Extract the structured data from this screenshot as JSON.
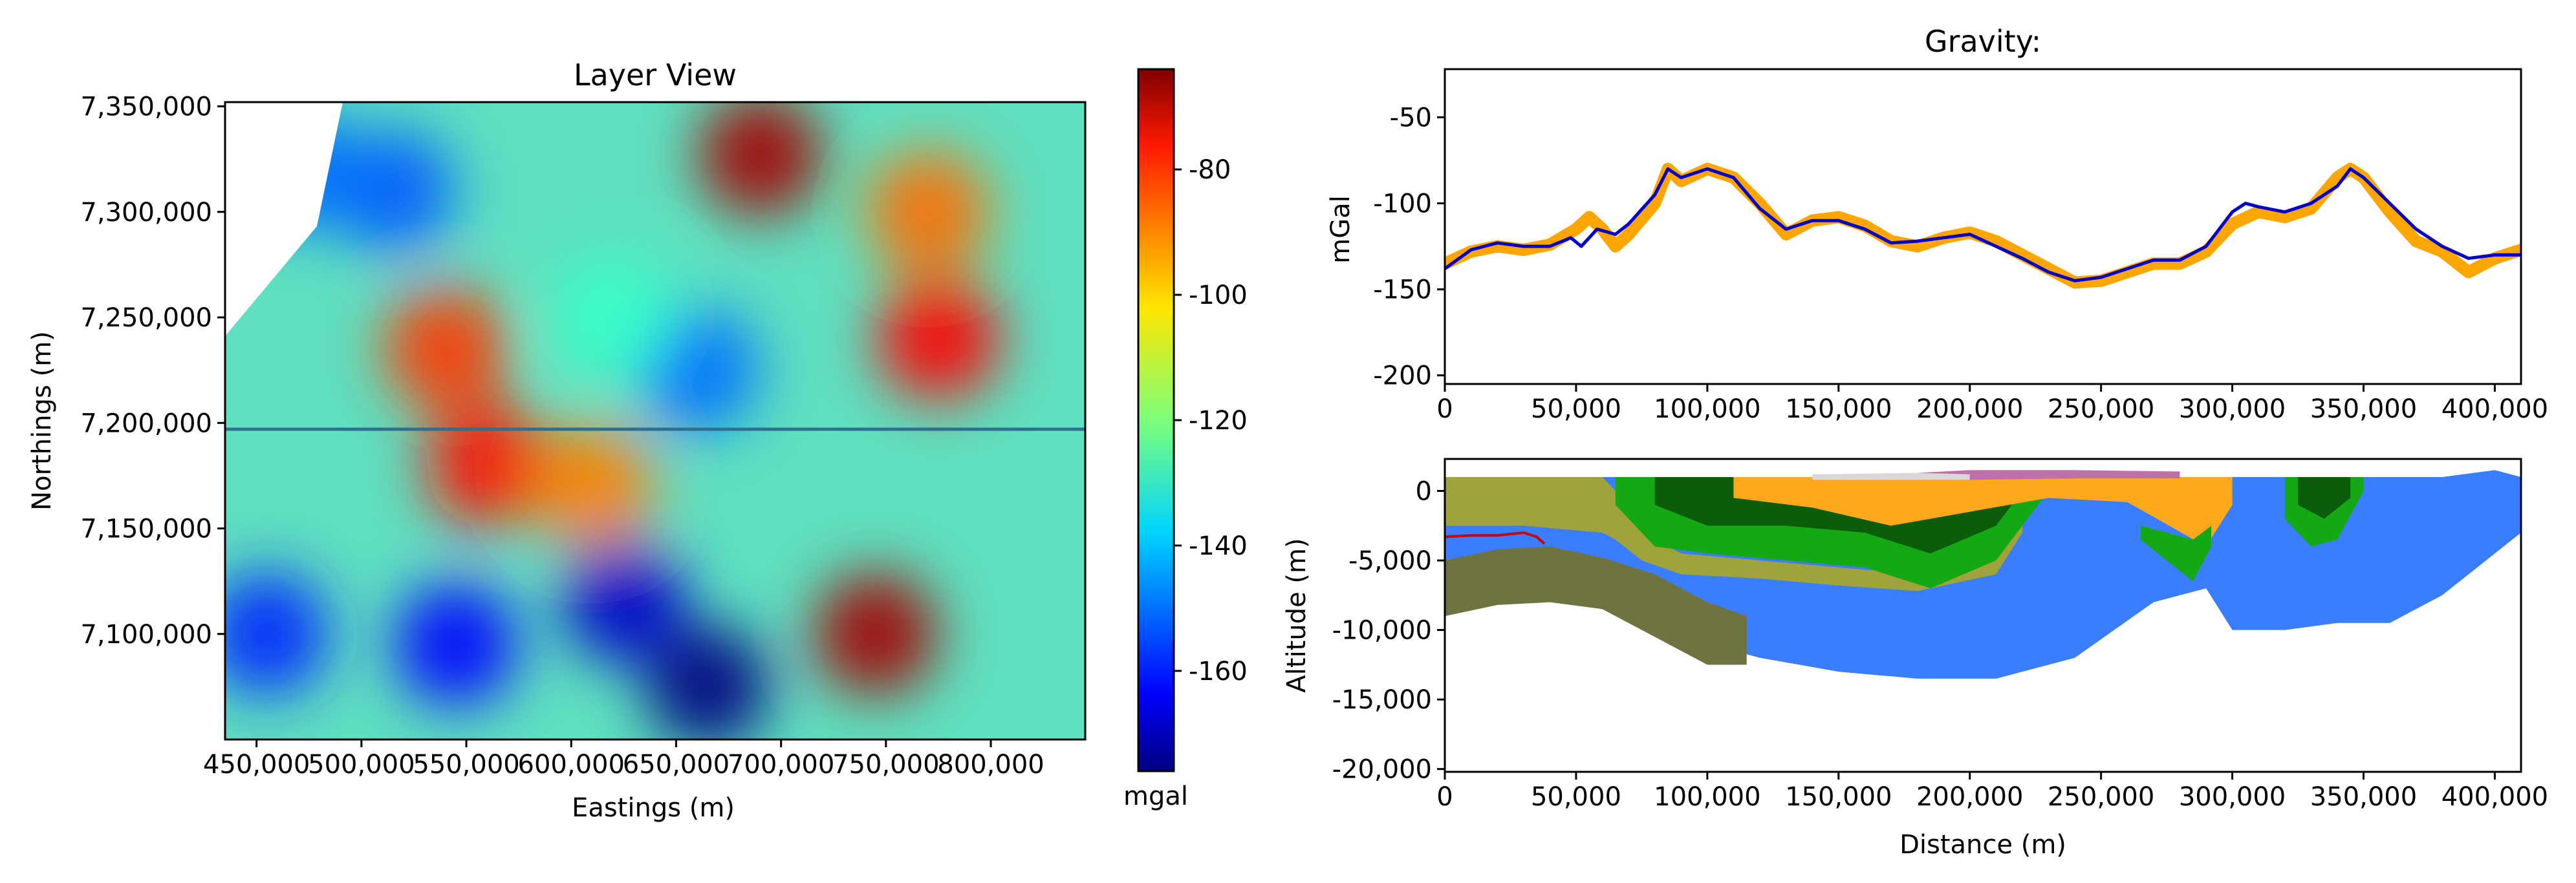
{
  "colors": {
    "observed_line": "#FFA500",
    "calculated_line": "#0000CC",
    "profile_line": "#2f6f8f",
    "layer_blue": "#3A7EFF",
    "layer_orange": "#FFA81C",
    "layer_olive": "#9FA33A",
    "layer_dark_olive": "#6E7340",
    "layer_green": "#14A814",
    "layer_dark_green": "#0B5C0B",
    "layer_pink": "#C070A8",
    "layer_gray": "#D8D8D8",
    "layer_red": "#CC0000"
  },
  "chart_data": [
    {
      "type": "heatmap",
      "title": "Layer View",
      "xlabel": "Eastings (m)",
      "ylabel": "Northings (m)",
      "xlim": [
        435000,
        845000
      ],
      "ylim": [
        7050000,
        7352000
      ],
      "x_ticks": [
        450000,
        500000,
        550000,
        600000,
        650000,
        700000,
        750000,
        800000
      ],
      "x_tick_labels": [
        "450,000",
        "500,000",
        "550,000",
        "600,000",
        "650,000",
        "700,000",
        "750,000",
        "800,000"
      ],
      "y_ticks": [
        7100000,
        7150000,
        7200000,
        7250000,
        7300000,
        7350000
      ],
      "y_tick_labels": [
        "7,100,000",
        "7,150,000",
        "7,200,000",
        "7,250,000",
        "7,300,000",
        "7,350,000"
      ],
      "colormap": "jet",
      "colorbar": {
        "label": "mgal",
        "range": [
          -176,
          -64
        ],
        "ticks": [
          -80,
          -100,
          -120,
          -140,
          -160
        ],
        "tick_labels": [
          "-80",
          "-100",
          "-120",
          "-140",
          "-160"
        ]
      },
      "profile_line_northing": 7197000,
      "anomalies": [
        {
          "e": 690000,
          "n": 7327000,
          "value": -68
        },
        {
          "e": 775000,
          "n": 7240000,
          "value": -78
        },
        {
          "e": 745000,
          "n": 7100000,
          "value": -68
        },
        {
          "e": 560000,
          "n": 7180000,
          "value": -80
        },
        {
          "e": 540000,
          "n": 7235000,
          "value": -84
        },
        {
          "e": 610000,
          "n": 7170000,
          "value": -92
        },
        {
          "e": 770000,
          "n": 7300000,
          "value": -90
        },
        {
          "e": 515000,
          "n": 7310000,
          "value": -152
        },
        {
          "e": 625000,
          "n": 7115000,
          "value": -168
        },
        {
          "e": 665000,
          "n": 7075000,
          "value": -176
        },
        {
          "e": 545000,
          "n": 7095000,
          "value": -162
        },
        {
          "e": 660000,
          "n": 7225000,
          "value": -150
        },
        {
          "e": 455000,
          "n": 7100000,
          "value": -158
        },
        {
          "e": 470000,
          "n": 7320000,
          "value": -150
        },
        {
          "e": 620000,
          "n": 7250000,
          "value": -128
        }
      ]
    },
    {
      "type": "line",
      "title": "Gravity:",
      "xlabel": "",
      "ylabel": "mGal",
      "xlim": [
        0,
        410000
      ],
      "ylim": [
        -205,
        -22
      ],
      "x_ticks": [
        0,
        50000,
        100000,
        150000,
        200000,
        250000,
        300000,
        350000,
        400000
      ],
      "x_tick_labels": [
        "0",
        "50,000",
        "100,000",
        "150,000",
        "200,000",
        "250,000",
        "300,000",
        "350,000",
        "400,000"
      ],
      "y_ticks": [
        -50,
        -100,
        -150,
        -200
      ],
      "y_tick_labels": [
        "-50",
        "-100",
        "-150",
        "-200"
      ],
      "series": [
        {
          "x": [
            0,
            10000,
            20000,
            30000,
            40000,
            50000,
            55000,
            60000,
            65000,
            70000,
            80000,
            85000,
            90000,
            100000,
            110000,
            120000,
            130000,
            140000,
            150000,
            160000,
            170000,
            180000,
            190000,
            200000,
            210000,
            220000,
            230000,
            240000,
            250000,
            260000,
            270000,
            280000,
            290000,
            300000,
            310000,
            320000,
            330000,
            340000,
            345000,
            350000,
            360000,
            370000,
            380000,
            390000,
            400000,
            410000
          ],
          "y": [
            -135,
            -128,
            -125,
            -127,
            -124,
            -115,
            -108,
            -115,
            -125,
            -118,
            -100,
            -80,
            -87,
            -80,
            -85,
            -100,
            -118,
            -110,
            -108,
            -113,
            -122,
            -125,
            -120,
            -117,
            -122,
            -130,
            -138,
            -146,
            -145,
            -140,
            -135,
            -135,
            -128,
            -112,
            -105,
            -108,
            -103,
            -85,
            -80,
            -85,
            -105,
            -122,
            -128,
            -140,
            -132,
            -127
          ]
        },
        {
          "x": [
            0,
            10000,
            20000,
            30000,
            40000,
            48000,
            52000,
            58000,
            65000,
            70000,
            80000,
            85000,
            90000,
            100000,
            110000,
            120000,
            130000,
            140000,
            150000,
            160000,
            170000,
            180000,
            190000,
            200000,
            210000,
            220000,
            230000,
            240000,
            250000,
            260000,
            270000,
            280000,
            290000,
            300000,
            305000,
            310000,
            320000,
            330000,
            340000,
            345000,
            350000,
            360000,
            370000,
            380000,
            390000,
            400000,
            410000
          ],
          "y": [
            -138,
            -127,
            -123,
            -125,
            -125,
            -120,
            -125,
            -115,
            -118,
            -112,
            -95,
            -80,
            -85,
            -80,
            -85,
            -103,
            -115,
            -110,
            -110,
            -115,
            -123,
            -122,
            -120,
            -118,
            -125,
            -132,
            -140,
            -145,
            -143,
            -138,
            -133,
            -133,
            -125,
            -105,
            -100,
            -102,
            -105,
            -100,
            -90,
            -80,
            -85,
            -100,
            -115,
            -125,
            -132,
            -130,
            -130
          ]
        }
      ]
    },
    {
      "type": "area",
      "title": "",
      "xlabel": "Distance (m)",
      "ylabel": "Altitude (m)",
      "xlim": [
        0,
        410000
      ],
      "ylim": [
        -20200,
        2300
      ],
      "x_ticks": [
        0,
        50000,
        100000,
        150000,
        200000,
        250000,
        300000,
        350000,
        400000
      ],
      "x_tick_labels": [
        "0",
        "50,000",
        "100,000",
        "150,000",
        "200,000",
        "250,000",
        "300,000",
        "350,000",
        "400,000"
      ],
      "y_ticks": [
        0,
        -5000,
        -10000,
        -15000,
        -20000
      ],
      "y_tick_labels": [
        "0",
        "-5,000",
        "-10,000",
        "-15,000",
        "-20,000"
      ],
      "layers": [
        {
          "color": "layer_blue",
          "x": [
            0,
            30000,
            60000,
            90000,
            120000,
            150000,
            180000,
            210000,
            240000,
            270000,
            290000,
            300000,
            320000,
            340000,
            360000,
            380000,
            400000,
            410000
          ],
          "top": [
            1000,
            1000,
            1000,
            1000,
            1000,
            1000,
            1000,
            1000,
            1000,
            1000,
            1000,
            1000,
            1000,
            1000,
            1000,
            1000,
            1500,
            1000
          ],
          "bottom": [
            -9000,
            -7500,
            -8500,
            -10500,
            -12000,
            -13000,
            -13500,
            -13500,
            -12000,
            -8000,
            -7000,
            -10000,
            -10000,
            -9500,
            -9500,
            -7500,
            -4500,
            -3000
          ]
        },
        {
          "color": "layer_dark_olive",
          "x": [
            0,
            20000,
            40000,
            60000,
            80000,
            100000,
            115000
          ],
          "top": [
            -5000,
            -4200,
            -4000,
            -4800,
            -6000,
            -8000,
            -9000
          ],
          "bottom": [
            -9000,
            -8200,
            -8000,
            -8500,
            -10500,
            -12500,
            -12500
          ]
        },
        {
          "color": "layer_olive",
          "x": [
            0,
            30000,
            60000,
            65000,
            75000,
            90000,
            120000,
            150000,
            180000,
            210000,
            220000
          ],
          "top": [
            1000,
            1000,
            1000,
            0,
            -3000,
            -4500,
            -5000,
            -5500,
            -6000,
            -4500,
            -2000
          ],
          "bottom": [
            -2500,
            -2500,
            -3000,
            -3500,
            -5000,
            -6000,
            -6300,
            -6800,
            -7200,
            -6000,
            -3000
          ]
        },
        {
          "color": "layer_green",
          "x": [
            65000,
            80000,
            100000,
            130000,
            160000,
            185000,
            210000,
            230000
          ],
          "top": [
            1000,
            1000,
            1000,
            1000,
            1000,
            1000,
            1000,
            1000
          ],
          "bottom": [
            -1000,
            -4000,
            -4500,
            -5000,
            -5500,
            -7000,
            -5000,
            0
          ]
        },
        {
          "color": "layer_dark_green",
          "x": [
            80000,
            100000,
            130000,
            160000,
            185000,
            210000,
            220000
          ],
          "top": [
            1000,
            1000,
            1000,
            1000,
            1000,
            1000,
            1000
          ],
          "bottom": [
            -1000,
            -2500,
            -2500,
            -3000,
            -4500,
            -2500,
            0
          ]
        },
        {
          "color": "layer_orange",
          "x": [
            110000,
            140000,
            170000,
            200000,
            230000,
            260000,
            290000,
            300000
          ],
          "top": [
            1000,
            1000,
            1000,
            1000,
            1000,
            1000,
            1000,
            1000
          ],
          "bottom": [
            -500,
            -1200,
            -2500,
            -1500,
            -500,
            -800,
            -4000,
            -1000
          ]
        },
        {
          "color": "layer_green",
          "x": [
            265000,
            275000,
            285000,
            292000
          ],
          "top": [
            -2500,
            -3000,
            -3500,
            -2500
          ],
          "bottom": [
            -3500,
            -5000,
            -6500,
            -4000
          ]
        },
        {
          "color": "layer_green",
          "x": [
            320000,
            330000,
            340000,
            350000
          ],
          "top": [
            1000,
            1000,
            1000,
            1000
          ],
          "bottom": [
            -2000,
            -4000,
            -3500,
            0
          ]
        },
        {
          "color": "layer_dark_green",
          "x": [
            325000,
            335000,
            345000
          ],
          "top": [
            1000,
            1000,
            1000
          ],
          "bottom": [
            -1000,
            -2000,
            -500
          ]
        },
        {
          "color": "layer_pink",
          "x": [
            180000,
            200000,
            240000,
            280000
          ],
          "top": [
            1300,
            1500,
            1500,
            1400
          ],
          "bottom": [
            800,
            800,
            900,
            900
          ]
        },
        {
          "color": "layer_gray",
          "x": [
            140000,
            180000,
            200000
          ],
          "top": [
            1200,
            1300,
            1200
          ],
          "bottom": [
            800,
            800,
            800
          ]
        }
      ],
      "lines": [
        {
          "color": "layer_red",
          "x": [
            0,
            10000,
            20000,
            30000,
            35000,
            38000
          ],
          "y": [
            -3300,
            -3200,
            -3200,
            -3000,
            -3300,
            -3800
          ]
        }
      ]
    }
  ]
}
